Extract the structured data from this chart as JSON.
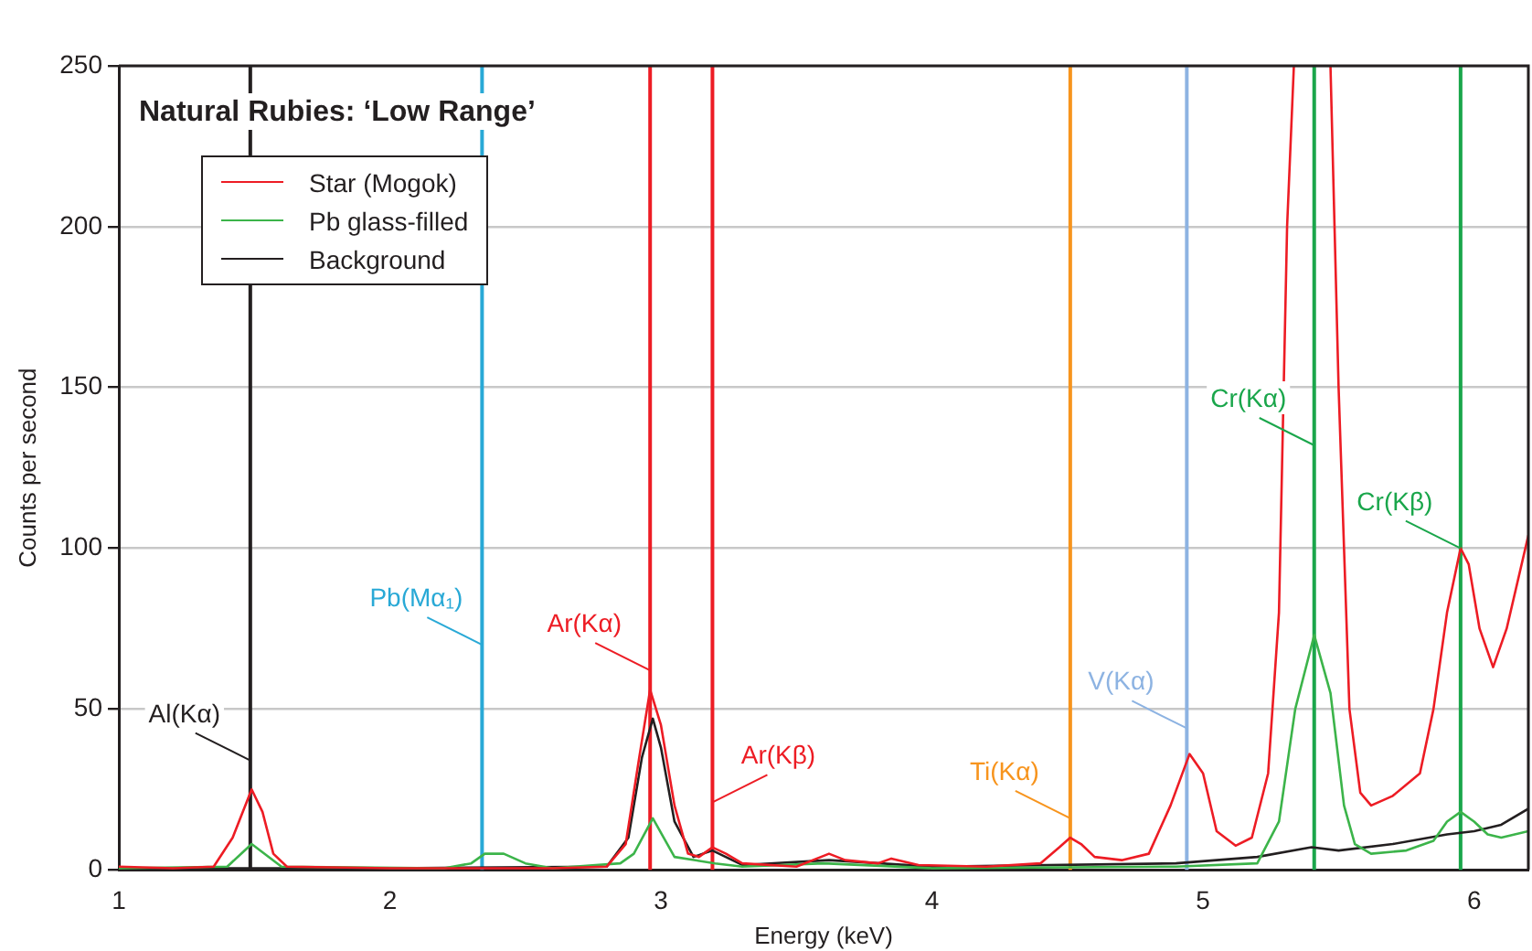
{
  "chart_data": {
    "type": "line",
    "title": "Natural Rubies: ‘Low Range’",
    "xlabel": "Energy (keV)",
    "ylabel": "Counts per second",
    "xlim": [
      1,
      6.2
    ],
    "xticks": [
      1,
      2,
      3,
      4,
      5,
      6
    ],
    "ylim": [
      0,
      250
    ],
    "yticks": [
      0,
      50,
      100,
      150,
      200,
      250
    ],
    "grid": "y",
    "legend": "top left",
    "marker": "none",
    "line_style": "solid",
    "series": [
      {
        "name": "Star (Mogok)",
        "color": "#ed1c24",
        "x": [
          1,
          1.2,
          1.35,
          1.42,
          1.49,
          1.53,
          1.57,
          1.62,
          2,
          2.3,
          2.6,
          2.8,
          2.87,
          2.92,
          2.96,
          3,
          3.05,
          3.1,
          3.14,
          3.19,
          3.24,
          3.3,
          3.5,
          3.62,
          3.68,
          3.8,
          3.85,
          3.95,
          4.2,
          4.4,
          4.47,
          4.51,
          4.55,
          4.6,
          4.7,
          4.8,
          4.88,
          4.95,
          5,
          5.05,
          5.12,
          5.18,
          5.24,
          5.28,
          5.31,
          5.335,
          5.4,
          5.47,
          5.5,
          5.54,
          5.58,
          5.62,
          5.7,
          5.8,
          5.85,
          5.9,
          5.95,
          5.98,
          6.02,
          6.07,
          6.12,
          6.2
        ],
        "values": [
          1,
          0.5,
          1,
          10,
          25,
          18,
          5,
          1,
          0.5,
          0.5,
          0.5,
          1,
          8,
          35,
          56,
          45,
          20,
          5,
          4,
          7,
          5,
          2,
          1,
          5,
          3,
          2,
          3.5,
          1.5,
          1,
          2,
          7,
          10,
          8,
          4,
          3,
          5,
          20,
          36,
          30,
          12,
          7.5,
          10,
          30,
          80,
          200,
          250,
          null,
          250,
          150,
          50,
          24,
          20,
          23,
          30,
          50,
          80,
          100,
          95,
          75,
          63,
          75,
          104
        ]
      },
      {
        "name": "Pb glass-filled",
        "color": "#3cb44a",
        "x": [
          1,
          1.4,
          1.49,
          1.6,
          2.2,
          2.3,
          2.35,
          2.42,
          2.5,
          2.6,
          2.85,
          2.9,
          2.97,
          3.05,
          3.2,
          3.3,
          3.6,
          4,
          4.9,
          5.2,
          5.28,
          5.34,
          5.41,
          5.47,
          5.52,
          5.56,
          5.62,
          5.75,
          5.85,
          5.9,
          5.95,
          6,
          6.05,
          6.1,
          6.2
        ],
        "values": [
          0.5,
          1,
          8,
          1,
          0.5,
          2,
          5,
          5,
          2,
          0.5,
          2,
          5,
          16,
          4,
          2,
          1,
          2,
          0.5,
          1,
          2,
          15,
          50,
          73,
          55,
          20,
          8,
          5,
          6,
          9,
          15,
          18,
          15,
          11,
          10,
          12
        ]
      },
      {
        "name": "Background",
        "color": "#231f20",
        "x": [
          1,
          2,
          2.8,
          2.88,
          2.93,
          2.97,
          3,
          3.05,
          3.12,
          3.19,
          3.3,
          3.62,
          4,
          4.9,
          5.2,
          5.4,
          5.5,
          5.7,
          5.9,
          6,
          6.1,
          6.2
        ],
        "values": [
          0.5,
          0.5,
          1,
          10,
          35,
          47,
          38,
          15,
          4,
          6,
          1.5,
          3,
          1,
          2,
          4,
          7,
          6,
          8,
          11,
          12,
          14,
          19
        ]
      }
    ],
    "ref_lines": [
      {
        "axis": "x",
        "value": 1.485,
        "color": "#231f20"
      },
      {
        "axis": "x",
        "value": 2.34,
        "color": "#29a9d6"
      },
      {
        "axis": "x",
        "value": 2.96,
        "color": "#ed1c24"
      },
      {
        "axis": "x",
        "value": 3.19,
        "color": "#ed1c24"
      },
      {
        "axis": "x",
        "value": 4.51,
        "color": "#f7941d"
      },
      {
        "axis": "x",
        "value": 4.94,
        "color": "#8db3e2"
      },
      {
        "axis": "x",
        "value": 5.41,
        "color": "#1aa64b"
      },
      {
        "axis": "x",
        "value": 5.95,
        "color": "#1aa64b"
      }
    ],
    "annotations": [
      {
        "text": "Al(Kα)",
        "x": 1.485,
        "y": 34
      },
      {
        "text": "Pb(Mα₁)",
        "x": 2.34,
        "y": 70
      },
      {
        "text": "Ar(Kα)",
        "x": 2.96,
        "y": 62
      },
      {
        "text": "Ar(Kβ)",
        "x": 3.19,
        "y": 21
      },
      {
        "text": "Ti(Kα)",
        "x": 4.51,
        "y": 16
      },
      {
        "text": "V(Kα)",
        "x": 4.94,
        "y": 44
      },
      {
        "text": "Cr(Kα)",
        "x": 5.41,
        "y": 132
      },
      {
        "text": "Cr(Kβ)",
        "x": 5.95,
        "y": 100
      }
    ]
  }
}
